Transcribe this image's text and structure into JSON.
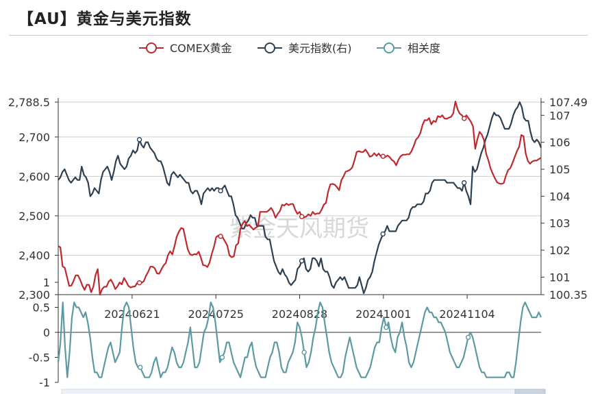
{
  "page": {
    "title": "【AU】黄金与美元指数",
    "watermark": "紫金天风期货"
  },
  "colors": {
    "gold": "#c0282d",
    "dxy": "#2e3f50",
    "corr": "#5b9aa0",
    "axis": "#333333",
    "grid": "#cccccc"
  },
  "chart_data": [
    {
      "type": "line",
      "title": "",
      "legend": {
        "placement": "top-center",
        "entries": [
          "COMEX黄金",
          "美元指数(右)",
          "相关度"
        ]
      },
      "x_ticks": [
        "20240621",
        "20240725",
        "20240828",
        "20241001",
        "20241104"
      ],
      "x_range": [
        "20240522",
        "20241204"
      ],
      "y_left": {
        "ticks": [
          "2,788.5",
          "2,700",
          "2,600",
          "2,500",
          "2,400",
          "2,300"
        ],
        "ylim": [
          2300,
          2788.5
        ]
      },
      "y_right": {
        "ticks": [
          "107.49",
          "107",
          "106",
          "105",
          "104",
          "103",
          "102",
          "101",
          "100.35"
        ],
        "ylim": [
          100.35,
          107.49
        ]
      },
      "grid": true,
      "series": [
        {
          "name": "COMEX黄金",
          "axis": "left",
          "values": [
            2423,
            2420,
            2372,
            2368,
            2345,
            2322,
            2323,
            2335,
            2349,
            2349,
            2338,
            2323,
            2312,
            2325,
            2325,
            2306,
            2320,
            2350,
            2365,
            2300,
            2314,
            2320,
            2320,
            2333,
            2338,
            2328,
            2314,
            2321,
            2331,
            2326,
            2342,
            2333,
            2322,
            2318,
            2320,
            2321,
            2330,
            2330,
            2330,
            2334,
            2348,
            2358,
            2371,
            2371,
            2367,
            2354,
            2353,
            2364,
            2374,
            2380,
            2400,
            2410,
            2402,
            2423,
            2447,
            2460,
            2469,
            2467,
            2441,
            2415,
            2403,
            2400,
            2403,
            2402,
            2409,
            2394,
            2375,
            2374,
            2370,
            2382,
            2404,
            2422,
            2446,
            2450,
            2448,
            2445,
            2435,
            2425,
            2400,
            2395,
            2397,
            2425,
            2430,
            2467,
            2480,
            2487,
            2474,
            2477,
            2471,
            2465,
            2470,
            2473,
            2510,
            2510,
            2510,
            2510,
            2514,
            2520,
            2511,
            2495,
            2505,
            2512,
            2528,
            2526,
            2531,
            2527,
            2530,
            2530,
            2515,
            2505,
            2510,
            2498,
            2496,
            2498,
            2504,
            2500,
            2510,
            2504,
            2506,
            2506,
            2515,
            2528,
            2533,
            2562,
            2580,
            2581,
            2579,
            2573,
            2565,
            2590,
            2600,
            2612,
            2614,
            2617,
            2623,
            2641,
            2662,
            2664,
            2662,
            2662,
            2668,
            2660,
            2650,
            2652,
            2659,
            2652,
            2658,
            2651,
            2651,
            2649,
            2653,
            2649,
            2642,
            2638,
            2628,
            2642,
            2651,
            2655,
            2655,
            2656,
            2656,
            2664,
            2677,
            2693,
            2699,
            2710,
            2731,
            2743,
            2742,
            2748,
            2732,
            2741,
            2738,
            2753,
            2750,
            2755,
            2747,
            2746,
            2749,
            2751,
            2760,
            2790,
            2770,
            2759,
            2755,
            2747,
            2755,
            2747,
            2739,
            2727,
            2670,
            2695,
            2713,
            2706,
            2692,
            2657,
            2641,
            2620,
            2607,
            2595,
            2585,
            2582,
            2581,
            2583,
            2602,
            2616,
            2621,
            2634,
            2649,
            2664,
            2675,
            2705,
            2702,
            2658,
            2639,
            2632,
            2638,
            2640,
            2640,
            2644,
            2647
          ]
        },
        {
          "name": "美元指数(右)",
          "axis": "right",
          "values": [
            104.6,
            104.7,
            104.9,
            105.0,
            104.8,
            104.6,
            104.5,
            104.6,
            104.7,
            104.6,
            104.6,
            105.1,
            104.8,
            104.7,
            104.5,
            104.0,
            104.1,
            104.3,
            104.2,
            104.1,
            104.6,
            104.9,
            105.0,
            105.1,
            104.9,
            104.6,
            104.9,
            105.3,
            105.5,
            105.2,
            105.1,
            105.0,
            105.1,
            105.4,
            105.5,
            105.7,
            105.6,
            105.7,
            106.1,
            105.9,
            105.8,
            106.0,
            106.0,
            105.8,
            105.7,
            105.6,
            105.4,
            105.3,
            105.3,
            105.1,
            104.8,
            104.5,
            104.4,
            104.8,
            104.9,
            104.8,
            104.7,
            104.8,
            104.7,
            104.6,
            104.5,
            104.5,
            104.2,
            104.1,
            104.2,
            104.2,
            104.0,
            103.7,
            104.1,
            104.2,
            104.3,
            104.2,
            104.3,
            104.2,
            104.3,
            104.3,
            104.2,
            104.3,
            104.4,
            104.2,
            104.0,
            104.0,
            103.7,
            103.3,
            103.2,
            103.0,
            102.8,
            102.8,
            103.0,
            103.1,
            103.3,
            103.2,
            103.2,
            102.9,
            102.9,
            102.9,
            102.9,
            102.5,
            102.4,
            102.4,
            102.0,
            101.6,
            101.4,
            101.2,
            101.1,
            101.3,
            101.1,
            101.0,
            100.8,
            100.7,
            100.8,
            100.9,
            101.3,
            101.4,
            101.6,
            101.7,
            101.3,
            101.2,
            101.3,
            101.7,
            101.7,
            101.6,
            101.4,
            101.7,
            101.3,
            101.2,
            101.2,
            101.0,
            100.7,
            100.6,
            100.8,
            100.9,
            101.0,
            100.9,
            101.0,
            100.8,
            100.6,
            100.6,
            100.6,
            100.6,
            100.7,
            101.0,
            100.7,
            100.4,
            100.6,
            100.9,
            101.0,
            101.2,
            101.6,
            101.9,
            102.2,
            102.4,
            102.6,
            102.7,
            102.9,
            102.7,
            102.7,
            102.7,
            102.7,
            102.9,
            103.0,
            103.1,
            103.1,
            103.1,
            103.2,
            103.5,
            103.6,
            103.6,
            103.7,
            103.7,
            103.7,
            103.8,
            104.1,
            104.1,
            104.2,
            104.5,
            104.6,
            104.6,
            104.6,
            104.6,
            104.6,
            104.6,
            104.5,
            104.5,
            104.5,
            104.5,
            104.4,
            104.3,
            104.3,
            104.2,
            104.5,
            104.2,
            104.0,
            103.7,
            105.1,
            104.9,
            105.0,
            105.3,
            105.6,
            105.8,
            106.1,
            106.3,
            106.6,
            106.9,
            107.1,
            107.0,
            107.0,
            106.9,
            106.7,
            106.5,
            106.5,
            106.5,
            106.7,
            107.0,
            107.2,
            107.3,
            107.49,
            107.3,
            106.9,
            106.8,
            106.8,
            106.4,
            106.1,
            106.0,
            106.1,
            106.0,
            105.8
          ]
        }
      ]
    },
    {
      "type": "line",
      "title": "",
      "legend_entry": "相关度",
      "x_ticks": [
        "20240621",
        "20240725",
        "20240828",
        "20241001",
        "20241104"
      ],
      "y_left": {
        "ticks": [
          "1",
          "0.5",
          "0",
          "-0.5",
          "-1"
        ],
        "ylim": [
          -1,
          1
        ]
      },
      "grid": false,
      "series": [
        {
          "name": "相关度",
          "axis": "left",
          "values": [
            -0.6,
            -0.2,
            0.6,
            -0.3,
            -0.9,
            -0.4,
            0.3,
            0.6,
            0.5,
            0.5,
            0.4,
            0.3,
            0.4,
            0.2,
            -0.1,
            -0.5,
            -0.8,
            -0.8,
            -0.9,
            -0.9,
            -0.7,
            -0.5,
            -0.3,
            -0.2,
            -0.4,
            -0.6,
            -0.5,
            -0.4,
            0.1,
            0.5,
            0.6,
            0.5,
            0.1,
            -0.3,
            -0.6,
            -0.7,
            -0.7,
            -0.8,
            -0.9,
            -0.9,
            -0.9,
            -0.8,
            -0.6,
            -0.5,
            -0.7,
            -0.9,
            -0.8,
            -0.8,
            -0.7,
            -0.5,
            -0.3,
            -0.4,
            -0.6,
            -0.7,
            -0.7,
            -0.6,
            -0.4,
            -0.2,
            0.1,
            -0.3,
            -0.7,
            -0.7,
            -0.6,
            -0.3,
            0.0,
            0.1,
            0.3,
            0.6,
            0.5,
            0.2,
            -0.2,
            -0.6,
            -0.5,
            -0.4,
            -0.2,
            -0.2,
            -0.4,
            -0.6,
            -0.7,
            -0.8,
            -0.9,
            -0.7,
            -0.5,
            -0.5,
            -0.3,
            -0.2,
            -0.5,
            -0.7,
            -0.8,
            -0.9,
            -0.9,
            -0.9,
            -0.7,
            -0.5,
            -0.4,
            -0.2,
            -0.2,
            -0.4,
            -0.7,
            -0.8,
            -0.8,
            -0.6,
            -0.5,
            -0.4,
            -0.2,
            0.2,
            0.1,
            -0.1,
            -0.4,
            -0.7,
            -0.6,
            -0.4,
            -0.1,
            0.1,
            0.4,
            0.6,
            0.5,
            0.2,
            -0.1,
            -0.4,
            -0.6,
            -0.7,
            -0.8,
            -0.9,
            -0.9,
            -0.8,
            -0.5,
            -0.3,
            -0.1,
            -0.3,
            -0.5,
            -0.7,
            -0.8,
            -0.9,
            -0.9,
            -0.9,
            -0.8,
            -0.7,
            -0.5,
            -0.3,
            -0.2,
            -0.2,
            0.1,
            0.3,
            0.1,
            0.2,
            -0.1,
            -0.3,
            -0.4,
            -0.1,
            0.0,
            0.2,
            -0.1,
            -0.3,
            -0.6,
            -0.7,
            -0.6,
            -0.4,
            -0.2,
            0.0,
            0.2,
            0.4,
            0.5,
            0.4,
            0.4,
            0.3,
            0.3,
            0.2,
            0.2,
            0.1,
            0.0,
            -0.2,
            -0.4,
            -0.5,
            -0.6,
            -0.7,
            -0.7,
            -0.6,
            -0.5,
            -0.3,
            -0.1,
            0.0,
            -0.1,
            -0.3,
            -0.5,
            -0.7,
            -0.8,
            -0.8,
            -0.9,
            -0.9,
            -0.9,
            -0.9,
            -0.9,
            -0.9,
            -0.9,
            -0.9,
            -0.9,
            -0.8,
            -0.8,
            -0.9,
            -0.9,
            -0.6,
            -0.2,
            0.2,
            0.5,
            0.6,
            0.5,
            0.4,
            0.3,
            0.3,
            0.3,
            0.4,
            0.3
          ]
        }
      ]
    }
  ]
}
